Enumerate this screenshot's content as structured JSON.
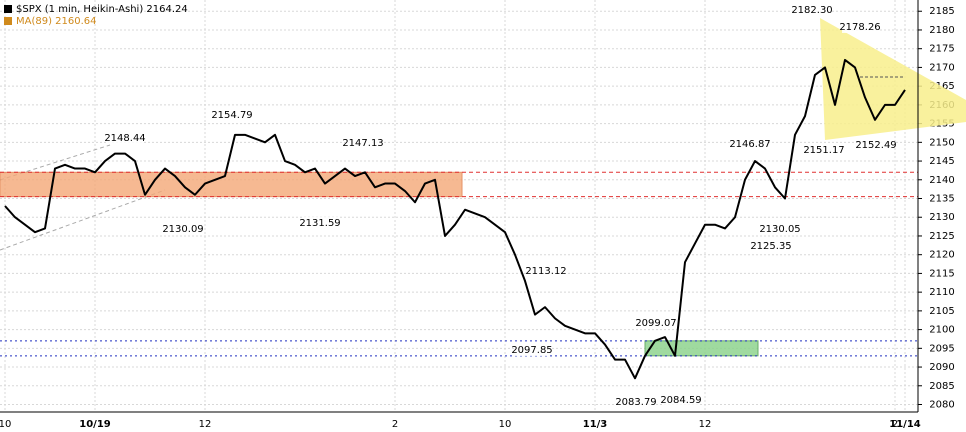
{
  "chart_data": {
    "type": "line",
    "legend": [
      {
        "text": "$SPX (1 min, Heikin-Ashi) 2164.24",
        "color": "#000000"
      },
      {
        "text": "MA(89) 2160.64",
        "color": "#d08a1c"
      }
    ],
    "categories": [
      "10",
      null,
      null,
      null,
      null,
      null,
      null,
      null,
      null,
      "10/19",
      null,
      null,
      null,
      null,
      null,
      null,
      null,
      null,
      null,
      null,
      "12",
      null,
      null,
      null,
      null,
      null,
      null,
      null,
      null,
      null,
      null,
      null,
      null,
      null,
      null,
      null,
      null,
      null,
      null,
      "2",
      null,
      null,
      null,
      null,
      null,
      null,
      null,
      null,
      null,
      null,
      "10",
      null,
      null,
      null,
      null,
      null,
      null,
      null,
      null,
      "11/3",
      null,
      null,
      null,
      null,
      null,
      null,
      null,
      null,
      null,
      null,
      "12",
      null,
      null,
      null,
      null,
      null,
      null,
      null,
      null,
      null,
      null,
      null,
      null,
      null,
      null,
      null,
      null,
      null,
      null,
      "2",
      "11/14"
    ],
    "series": [
      {
        "name": "$SPX (1 min, Heikin-Ashi) 2164.24",
        "color": "#000000",
        "values": [
          2133,
          2130,
          2128,
          2126,
          2127,
          2143,
          2144,
          2143,
          2143,
          2142,
          2145,
          2147,
          2147,
          2145,
          2136,
          2140,
          2143,
          2141,
          2138,
          2136,
          2139,
          2140,
          2141,
          2152,
          2152,
          2151,
          2150,
          2152,
          2145,
          2144,
          2142,
          2143,
          2139,
          2141,
          2143,
          2141,
          2142,
          2138,
          2139,
          2139,
          2137,
          2134,
          2139,
          2140,
          2125,
          2128,
          2132,
          2131,
          2130,
          2128,
          2126,
          2120,
          2113,
          2104,
          2106,
          2103,
          2101,
          2100,
          2099,
          2099,
          2096,
          2092,
          2092,
          2087,
          2093,
          2097,
          2098,
          2093,
          2118,
          2123,
          2128,
          2128,
          2127,
          2130,
          2140,
          2145,
          2143,
          2138,
          2135,
          2152,
          2157,
          2168,
          2170,
          2160,
          2172,
          2170,
          2162,
          2156,
          2160,
          2160,
          2164
        ]
      }
    ],
    "annotations": [
      "2148.44",
      "2154.79",
      "2147.13",
      "2182.30",
      "2178.26",
      "2146.87",
      "2151.17",
      "2152.49",
      "2130.09",
      "2131.59",
      "2113.12",
      "2097.85",
      "2099.07",
      "2083.79",
      "2084.59",
      "2130.05",
      "2125.35"
    ],
    "resistance": [
      2142,
      2135.5
    ],
    "support": [
      2097,
      2093
    ],
    "ylim": [
      2078,
      2188
    ],
    "yticks": [
      2080,
      2085,
      2090,
      2095,
      2100,
      2105,
      2110,
      2115,
      2120,
      2125,
      2130,
      2135,
      2140,
      2145,
      2150,
      2155,
      2160,
      2165,
      2170,
      2175,
      2180,
      2185
    ],
    "grid": true
  }
}
